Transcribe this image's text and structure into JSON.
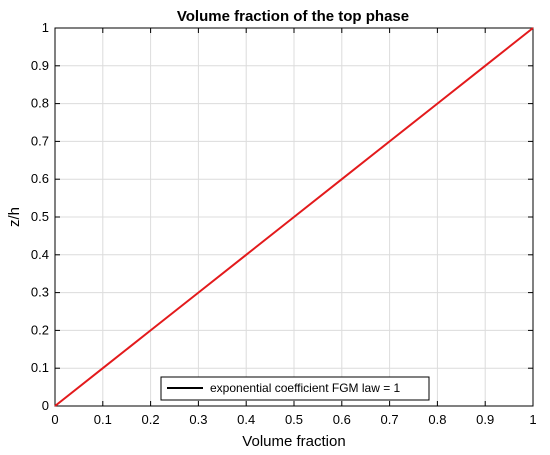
{
  "chart_data": {
    "type": "line",
    "title": "Volume fraction of the top phase",
    "xlabel": "Volume fraction",
    "ylabel": "z/h",
    "xlim": [
      0,
      1
    ],
    "ylim": [
      0,
      1
    ],
    "xticks": [
      "0",
      "0.1",
      "0.2",
      "0.3",
      "0.4",
      "0.5",
      "0.6",
      "0.7",
      "0.8",
      "0.9",
      "1"
    ],
    "yticks": [
      "0",
      "0.1",
      "0.2",
      "0.3",
      "0.4",
      "0.5",
      "0.6",
      "0.7",
      "0.8",
      "0.9",
      "1"
    ],
    "grid": true,
    "legend_position": "bottom-center",
    "series": [
      {
        "name": "exponential coefficient FGM law = 1",
        "color": "#e31a1c",
        "legend_color": "#000000",
        "x": [
          0,
          0.1,
          0.2,
          0.3,
          0.4,
          0.5,
          0.6,
          0.7,
          0.8,
          0.9,
          1
        ],
        "y": [
          0,
          0.1,
          0.2,
          0.3,
          0.4,
          0.5,
          0.6,
          0.7,
          0.8,
          0.9,
          1
        ]
      }
    ]
  }
}
